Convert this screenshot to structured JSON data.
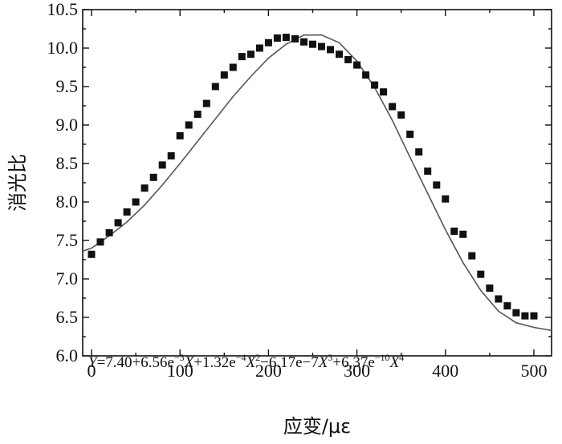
{
  "chart_data": {
    "type": "scatter",
    "xlabel": "应变/με",
    "ylabel": "消光比",
    "xlim": [
      -10,
      520
    ],
    "ylim": [
      6.0,
      10.5
    ],
    "x_ticks": [
      0,
      100,
      200,
      300,
      400,
      500
    ],
    "y_ticks": [
      6.0,
      6.5,
      7.0,
      7.5,
      8.0,
      8.5,
      9.0,
      9.5,
      10.0,
      10.5
    ],
    "x_tick_labels": [
      "0",
      "100",
      "200",
      "300",
      "400",
      "500"
    ],
    "y_tick_labels": [
      "6.0",
      "6.5",
      "7.0",
      "7.5",
      "8.0",
      "8.5",
      "9.0",
      "9.5",
      "10.0",
      "10.5"
    ],
    "grid": false,
    "series": [
      {
        "kind": "points",
        "x": [
          0,
          10,
          20,
          30,
          40,
          50,
          60,
          70,
          80,
          90,
          100,
          110,
          120,
          130,
          140,
          150,
          160,
          170,
          180,
          190,
          200,
          210,
          220,
          230,
          240,
          250,
          260,
          270,
          280,
          290,
          300,
          310,
          320,
          330,
          340,
          350,
          360,
          370,
          380,
          390,
          400,
          410,
          420,
          430,
          440,
          450,
          460,
          470,
          480,
          490,
          500
        ],
        "y": [
          7.32,
          7.48,
          7.6,
          7.73,
          7.87,
          8.0,
          8.18,
          8.32,
          8.48,
          8.6,
          8.86,
          9.0,
          9.14,
          9.28,
          9.5,
          9.65,
          9.75,
          9.89,
          9.92,
          10.0,
          10.07,
          10.13,
          10.14,
          10.12,
          10.08,
          10.05,
          10.02,
          9.98,
          9.92,
          9.85,
          9.78,
          9.65,
          9.52,
          9.43,
          9.24,
          9.13,
          8.88,
          8.65,
          8.4,
          8.22,
          8.04,
          7.62,
          7.58,
          7.3,
          7.06,
          6.88,
          6.74,
          6.65,
          6.56,
          6.52,
          6.52
        ]
      },
      {
        "kind": "fit-line",
        "x": [
          -10,
          0,
          20,
          40,
          60,
          80,
          100,
          120,
          140,
          160,
          180,
          200,
          220,
          240,
          260,
          280,
          300,
          320,
          340,
          360,
          380,
          400,
          420,
          440,
          460,
          480,
          500,
          520
        ],
        "y": [
          7.36,
          7.4,
          7.56,
          7.74,
          7.96,
          8.22,
          8.5,
          8.79,
          9.08,
          9.37,
          9.63,
          9.87,
          10.05,
          10.17,
          10.17,
          10.07,
          9.83,
          9.49,
          9.06,
          8.58,
          8.11,
          7.64,
          7.21,
          6.85,
          6.58,
          6.43,
          6.37,
          6.33
        ]
      }
    ],
    "equation": {
      "lhs": "Y",
      "eq": "=7.40+6.56e",
      "sup1": "−3",
      "x1": "X",
      "t2": "+1.32e",
      "sup2": "−4",
      "x2": "X",
      "sup2b": "2",
      "t3": "−6.17e−7",
      "x3": "X",
      "sup3": "3",
      "t4": "+6.37e",
      "sup4": "−10",
      "x4": "X",
      "sup4b": "4"
    }
  }
}
